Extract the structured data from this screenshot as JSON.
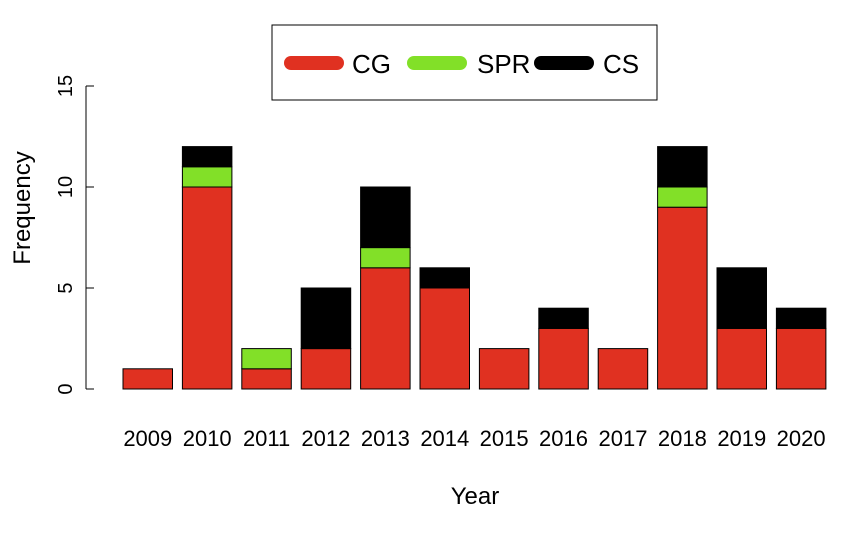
{
  "chart_data": {
    "type": "bar",
    "stacked": true,
    "categories": [
      "2009",
      "2010",
      "2011",
      "2012",
      "2013",
      "2014",
      "2015",
      "2016",
      "2017",
      "2018",
      "2019",
      "2020"
    ],
    "series": [
      {
        "name": "CG",
        "color": "#e03121",
        "values": [
          1,
          10,
          1,
          2,
          6,
          5,
          2,
          3,
          2,
          9,
          3,
          3
        ]
      },
      {
        "name": "SPR",
        "color": "#82e028",
        "values": [
          0,
          1,
          1,
          0,
          1,
          0,
          0,
          0,
          0,
          1,
          0,
          0
        ]
      },
      {
        "name": "CS",
        "color": "#000000",
        "values": [
          0,
          1,
          0,
          3,
          3,
          1,
          0,
          1,
          0,
          2,
          3,
          1
        ]
      }
    ],
    "xlabel": "Year",
    "ylabel": "Frequency",
    "ylim": [
      0,
      15
    ],
    "yticks": [
      0,
      5,
      10,
      15
    ],
    "grid": false,
    "legend": "top"
  }
}
